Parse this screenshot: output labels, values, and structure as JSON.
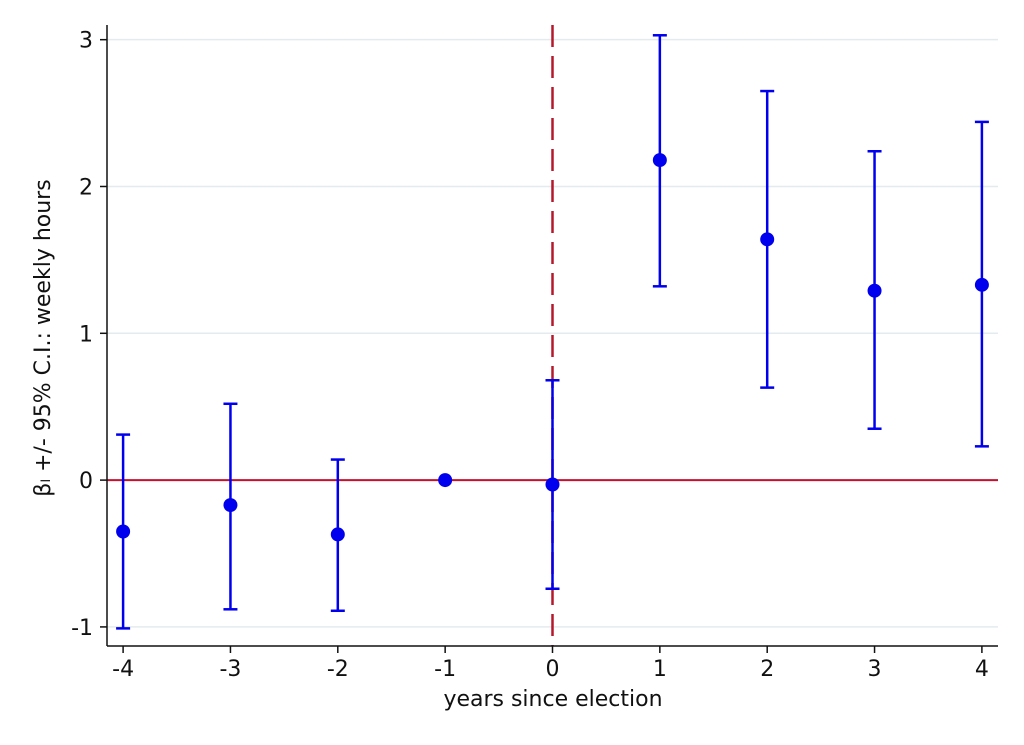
{
  "chart_data": {
    "type": "scatter",
    "title": "",
    "xlabel": "years since election",
    "ylabel": "βₗ +/- 95% C.I.: weekly hours",
    "xlim": [
      -4.15,
      4.15
    ],
    "ylim": [
      -1.13,
      3.1
    ],
    "xticks": [
      -4,
      -3,
      -2,
      -1,
      0,
      1,
      2,
      3,
      4
    ],
    "xtick_labels": [
      "-4",
      "-3",
      "-2",
      "-1",
      "0",
      "1",
      "2",
      "3",
      "4"
    ],
    "yticks": [
      -1,
      0,
      1,
      2,
      3
    ],
    "ytick_labels": [
      "-1",
      "0",
      "1",
      "2",
      "3"
    ],
    "grid": "horizontal",
    "legend": "none",
    "reference_lines": [
      {
        "orientation": "horizontal",
        "value": 0,
        "style": "solid",
        "color": "#c8102e"
      },
      {
        "orientation": "vertical",
        "value": 0,
        "style": "dashed",
        "color": "#b5182b"
      }
    ],
    "series": [
      {
        "x": [
          -4,
          -3,
          -2,
          -1,
          0,
          1,
          2,
          3,
          4
        ],
        "y": [
          -0.35,
          -0.17,
          -0.37,
          0.0,
          -0.03,
          2.18,
          1.64,
          1.29,
          1.33
        ],
        "ci_low": [
          -1.01,
          -0.88,
          -0.89,
          null,
          -0.74,
          1.32,
          0.63,
          0.35,
          0.23
        ],
        "ci_high": [
          0.31,
          0.52,
          0.14,
          null,
          0.68,
          3.03,
          2.65,
          2.24,
          2.44
        ],
        "color": "#0000ee"
      }
    ]
  }
}
